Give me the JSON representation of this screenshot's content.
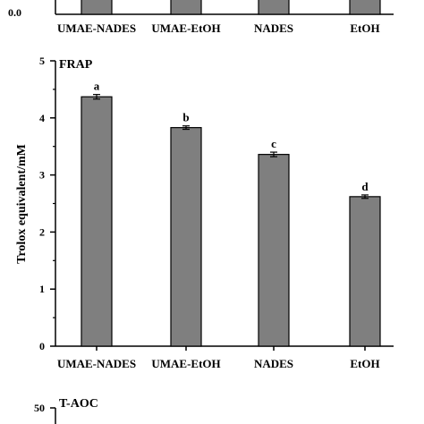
{
  "chart_data": [
    {
      "type": "bar",
      "panel": "top (cropped)",
      "categories": [
        "UMAE-NADES",
        "UMAE-EtOH",
        "NADES",
        "EtOH"
      ],
      "yticks_visible": [
        "0.0"
      ]
    },
    {
      "type": "bar",
      "title": "FRAP",
      "categories": [
        "UMAE-NADES",
        "UMAE-EtOH",
        "NADES",
        "EtOH"
      ],
      "values": [
        4.37,
        3.83,
        3.36,
        2.62
      ],
      "errors": [
        0.04,
        0.03,
        0.04,
        0.03
      ],
      "significance": [
        "a",
        "b",
        "c",
        "d"
      ],
      "ylabel": "Trolox equivalent/mM",
      "xlabel": "",
      "ylim": [
        0,
        5
      ],
      "yticks": [
        "0",
        "1",
        "2",
        "3",
        "4",
        "5"
      ],
      "bar_color": "#7f7f7f",
      "grid": false
    },
    {
      "type": "bar",
      "title": "T-AOC",
      "panel": "bottom (cropped)",
      "yticks_visible": [
        "50"
      ]
    }
  ]
}
